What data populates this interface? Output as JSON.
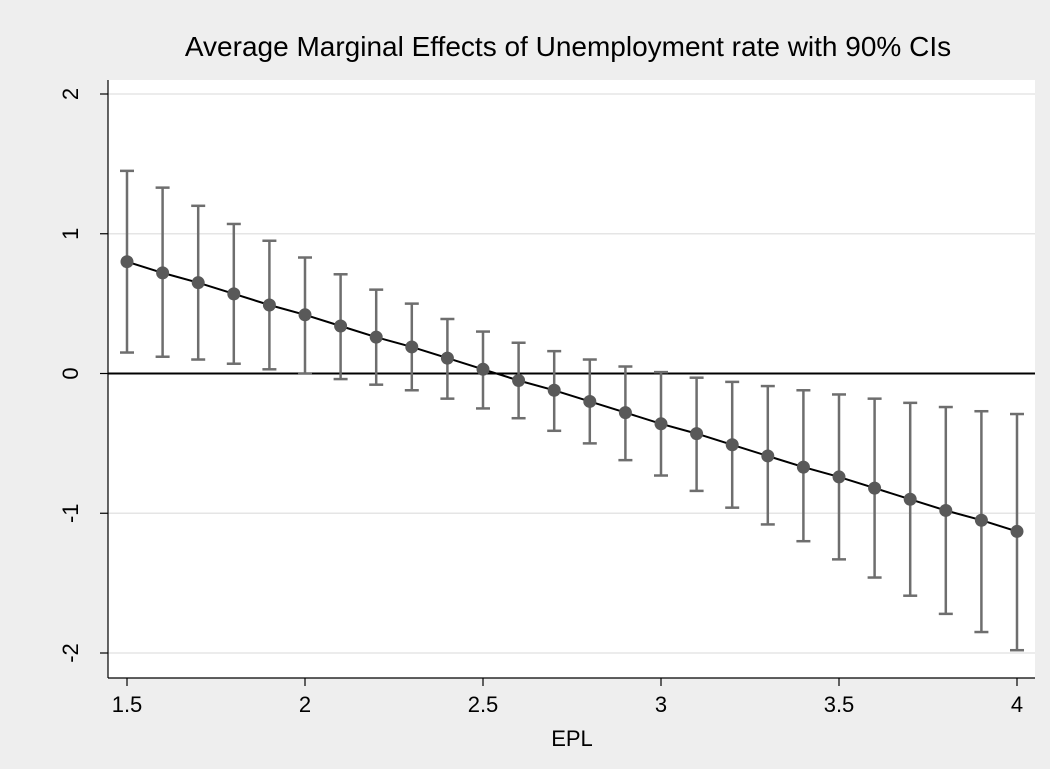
{
  "chart_data": {
    "type": "line",
    "title": "Average Marginal Effects of Unemployment rate with 90% CIs",
    "xlabel": "EPL",
    "ylabel": "",
    "xlim": [
      1.5,
      4
    ],
    "ylim": [
      -2,
      2
    ],
    "xticks": [
      "1.5",
      "2",
      "2.5",
      "3",
      "3.5",
      "4"
    ],
    "yticks": [
      "-2",
      "-1",
      "0",
      "1",
      "2"
    ],
    "grid": "horizontal",
    "reference_line_y": 0,
    "x": [
      1.5,
      1.6,
      1.7,
      1.8,
      1.9,
      2.0,
      2.1,
      2.2,
      2.3,
      2.4,
      2.5,
      2.6,
      2.7,
      2.8,
      2.9,
      3.0,
      3.1,
      3.2,
      3.3,
      3.4,
      3.5,
      3.6,
      3.7,
      3.8,
      3.9,
      4.0
    ],
    "series": [
      {
        "values": [
          0.8,
          0.72,
          0.65,
          0.57,
          0.49,
          0.42,
          0.34,
          0.26,
          0.19,
          0.11,
          0.03,
          -0.05,
          -0.12,
          -0.2,
          -0.28,
          -0.36,
          -0.43,
          -0.51,
          -0.59,
          -0.67,
          -0.74,
          -0.82,
          -0.9,
          -0.98,
          -1.05,
          -1.13
        ],
        "ci_lower": [
          0.15,
          0.12,
          0.1,
          0.07,
          0.03,
          0.0,
          -0.04,
          -0.08,
          -0.12,
          -0.18,
          -0.25,
          -0.32,
          -0.41,
          -0.5,
          -0.62,
          -0.73,
          -0.84,
          -0.96,
          -1.08,
          -1.2,
          -1.33,
          -1.46,
          -1.59,
          -1.72,
          -1.85,
          -1.98
        ],
        "ci_upper": [
          1.45,
          1.33,
          1.2,
          1.07,
          0.95,
          0.83,
          0.71,
          0.6,
          0.5,
          0.39,
          0.3,
          0.22,
          0.16,
          0.1,
          0.05,
          0.01,
          -0.03,
          -0.06,
          -0.09,
          -0.12,
          -0.15,
          -0.18,
          -0.21,
          -0.24,
          -0.27,
          -0.29
        ]
      }
    ],
    "colors": {
      "background": "#eeeeee",
      "plot_background": "#ffffff",
      "grid": "#e5e5e5",
      "marker": "#595959",
      "ci": "#6e6e6e",
      "line": "#000000"
    }
  }
}
